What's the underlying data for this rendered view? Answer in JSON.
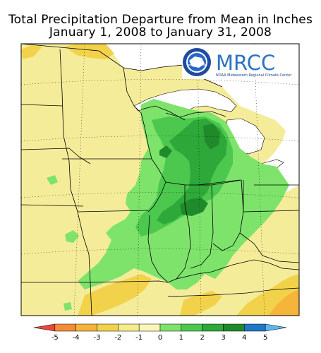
{
  "title": {
    "line1": "Total Precipitation Departure from Mean in Inches",
    "line2": "January 1, 2008 to January 31, 2008"
  },
  "logo": {
    "wordmark": "MRCC",
    "tagline": "NOAA Midwestern Regional Climate Center",
    "seal_text": "NATIONAL OCEANIC AND ATMOSPHERIC ADMINISTRATION"
  },
  "legend": {
    "ticks": [
      "-5",
      "-4",
      "-3",
      "-2",
      "-1",
      "0",
      "1",
      "2",
      "3",
      "4",
      "5"
    ],
    "colors": [
      "#e8473a",
      "#f58a38",
      "#f5b43a",
      "#f2d24a",
      "#f5ec8a",
      "#fbf6b8",
      "#7ee36b",
      "#4cc84f",
      "#2ea838",
      "#1f8a2a",
      "#1f78c8",
      "#5fb4f0"
    ]
  },
  "colors": {
    "dry_mild": "#f5ec9a",
    "dry_moderate": "#f2d24a",
    "dry_strong": "#f5b43a",
    "wet_light": "#7ee36b",
    "wet_moderate": "#4cc84f",
    "wet_heavy": "#2ea838",
    "wet_very_heavy": "#1f8a2a",
    "water": "#ffffff",
    "border": "#000000"
  }
}
